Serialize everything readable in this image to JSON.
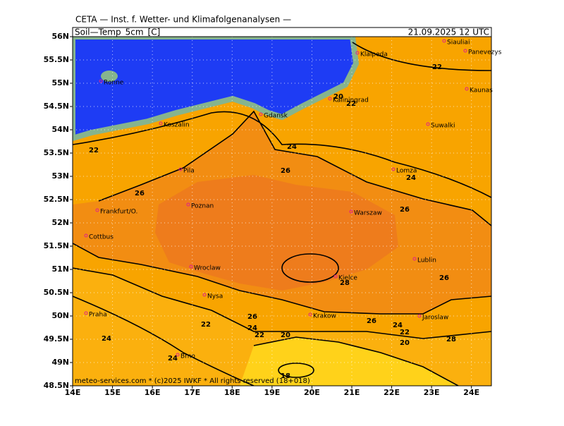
{
  "header": {
    "institute": "CETA — Inst. f. Wetter- und Klimafolgenanalysen —",
    "variable": "Soil—Temp_5cm_[C]",
    "valid_time": "21.09.2025 12 UTC"
  },
  "map": {
    "xlim": [
      14,
      24.5
    ],
    "ylim": [
      48.5,
      56
    ],
    "xticks": [
      {
        "value": 14,
        "label": "14E"
      },
      {
        "value": 15,
        "label": "15E"
      },
      {
        "value": 16,
        "label": "16E"
      },
      {
        "value": 17,
        "label": "17E"
      },
      {
        "value": 18,
        "label": "18E"
      },
      {
        "value": 19,
        "label": "19E"
      },
      {
        "value": 20,
        "label": "20E"
      },
      {
        "value": 21,
        "label": "21E"
      },
      {
        "value": 22,
        "label": "22E"
      },
      {
        "value": 23,
        "label": "23E"
      },
      {
        "value": 24,
        "label": "24E"
      }
    ],
    "yticks": [
      {
        "value": 48.5,
        "label": "48.5N"
      },
      {
        "value": 49,
        "label": "49N"
      },
      {
        "value": 49.5,
        "label": "49.5N"
      },
      {
        "value": 50,
        "label": "50N"
      },
      {
        "value": 50.5,
        "label": "50.5N"
      },
      {
        "value": 51,
        "label": "51N"
      },
      {
        "value": 51.5,
        "label": "51.5N"
      },
      {
        "value": 52,
        "label": "52N"
      },
      {
        "value": 52.5,
        "label": "52.5N"
      },
      {
        "value": 53,
        "label": "53N"
      },
      {
        "value": 53.5,
        "label": "53.5N"
      },
      {
        "value": 54,
        "label": "54N"
      },
      {
        "value": 54.5,
        "label": "54.5N"
      },
      {
        "value": 55,
        "label": "55N"
      },
      {
        "value": 55.5,
        "label": "55.5N"
      },
      {
        "value": 56,
        "label": "56N"
      }
    ],
    "cities": [
      "Siauliai",
      "Panevezys",
      "Klaipeda",
      "Kaunas",
      "Ronne",
      "Kaliningrad",
      "Gdansk",
      "Koszalin",
      "Suwalki",
      "Pila",
      "Lomza",
      "Poznan",
      "Frankfurt/O.",
      "Warszaw",
      "Cottbus",
      "Lublin",
      "Wroclaw",
      "Kielce",
      "Nysa",
      "Praha",
      "Krakow",
      "Jaroslaw",
      "Brno"
    ],
    "contour_labels": [
      22,
      20,
      22,
      24,
      22,
      26,
      24,
      26,
      26,
      26,
      28,
      26,
      24,
      22,
      20,
      26,
      24,
      22,
      20,
      28,
      22,
      24,
      24,
      18
    ],
    "footer": "meteo-services.com * (c)2025 IWKF * All rights reserved (18+018)"
  }
}
